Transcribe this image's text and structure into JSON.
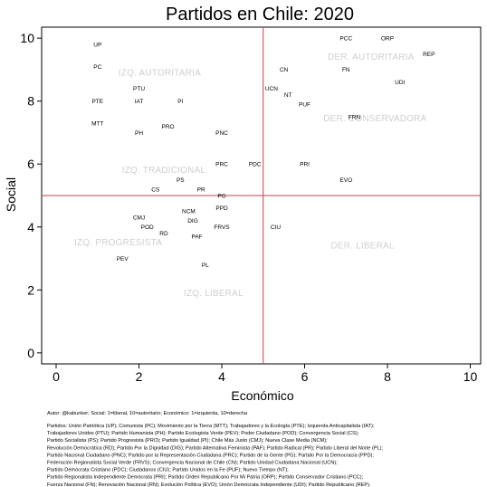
{
  "chart_data": {
    "type": "scatter",
    "title": "Partidos en Chile: 2020",
    "xlabel": "Económico",
    "ylabel": "Social",
    "xlim": [
      -0.35,
      10.25
    ],
    "ylim": [
      -0.35,
      10.35
    ],
    "xticks": [
      "0",
      "2",
      "4",
      "6",
      "8",
      "10"
    ],
    "yticks": [
      "0",
      "2",
      "4",
      "6",
      "8",
      "10"
    ],
    "reference_lines": {
      "x": 5,
      "y": 5,
      "color": "#c0404a"
    },
    "points": [
      {
        "label": "UP",
        "x": 1,
        "y": 9.8
      },
      {
        "label": "PC",
        "x": 1,
        "y": 9.1
      },
      {
        "label": "PTU",
        "x": 2,
        "y": 8.4
      },
      {
        "label": "PTE",
        "x": 1,
        "y": 8
      },
      {
        "label": "IAT",
        "x": 2,
        "y": 8
      },
      {
        "label": "PI",
        "x": 3,
        "y": 8
      },
      {
        "label": "MTT",
        "x": 1,
        "y": 7.3
      },
      {
        "label": "PRO",
        "x": 2.7,
        "y": 7.2
      },
      {
        "label": "PH",
        "x": 2,
        "y": 7
      },
      {
        "label": "PNC",
        "x": 4,
        "y": 7
      },
      {
        "label": "PRC",
        "x": 4,
        "y": 6
      },
      {
        "label": "PDC",
        "x": 4.8,
        "y": 6
      },
      {
        "label": "PRI",
        "x": 6,
        "y": 6
      },
      {
        "label": "PS",
        "x": 3,
        "y": 5.5
      },
      {
        "label": "EVO",
        "x": 7,
        "y": 5.5
      },
      {
        "label": "CS",
        "x": 2.4,
        "y": 5.2
      },
      {
        "label": "PR",
        "x": 3.5,
        "y": 5.2
      },
      {
        "label": "PG",
        "x": 4,
        "y": 5
      },
      {
        "label": "PPD",
        "x": 4,
        "y": 4.6
      },
      {
        "label": "NCM",
        "x": 3.2,
        "y": 4.5
      },
      {
        "label": "CMJ",
        "x": 2,
        "y": 4.3
      },
      {
        "label": "DIG",
        "x": 3.3,
        "y": 4.2
      },
      {
        "label": "POD",
        "x": 2.2,
        "y": 4
      },
      {
        "label": "FRVS",
        "x": 4,
        "y": 4
      },
      {
        "label": "CIU",
        "x": 5.3,
        "y": 4
      },
      {
        "label": "RD",
        "x": 2.6,
        "y": 3.8
      },
      {
        "label": "PAF",
        "x": 3.4,
        "y": 3.7
      },
      {
        "label": "PEV",
        "x": 1.6,
        "y": 3
      },
      {
        "label": "PL",
        "x": 3.6,
        "y": 2.8
      },
      {
        "label": "PCC",
        "x": 7,
        "y": 10
      },
      {
        "label": "ORP",
        "x": 8,
        "y": 10
      },
      {
        "label": "REP",
        "x": 9,
        "y": 9.5
      },
      {
        "label": "CN",
        "x": 5.5,
        "y": 9
      },
      {
        "label": "FN",
        "x": 7,
        "y": 9
      },
      {
        "label": "UDI",
        "x": 8.3,
        "y": 8.6
      },
      {
        "label": "UCN",
        "x": 5.2,
        "y": 8.4
      },
      {
        "label": "NT",
        "x": 5.6,
        "y": 8.2
      },
      {
        "label": "PUF",
        "x": 6,
        "y": 7.9
      },
      {
        "label": "FRN",
        "x": 7.2,
        "y": 7.5
      }
    ],
    "regions": [
      {
        "label": "IZQ. AUTORITARIA",
        "x": 2.5,
        "y": 8.9
      },
      {
        "label": "DER. AUTORITARIA",
        "x": 7.6,
        "y": 9.4
      },
      {
        "label": "DER. CONSERVADORA",
        "x": 7.7,
        "y": 7.45
      },
      {
        "label": "IZQ. TRADICIONAL",
        "x": 2.6,
        "y": 5.8
      },
      {
        "label": "IZQ. PROGRESISTA",
        "x": 1.5,
        "y": 3.5
      },
      {
        "label": "DER. LIBERAL",
        "x": 7.4,
        "y": 3.4
      },
      {
        "label": "IZQ. LIBERAL",
        "x": 3.8,
        "y": 1.9
      }
    ]
  },
  "footer": {
    "author": "Autor: @kabunker; Social: 1=liberal, 10=autoritario; Económico: 1=izquierda, 10=derecha",
    "legend_lines": [
      "Partidos: Unión Patriótica (UP); Comunista (PC); Movimiento por la Tierra (MTT); Trabajadores y la Ecología (PTE); Izquierda Anticapitalista (IAT);",
      "Trabajadores Unidos (PTU); Partido Humanista (PH); Partido Ecologista Verde (PEV); Poder Ciudadano (POD); Convergencia Social (CS);",
      "Partido Socialista (PS); Partido Progresista (PRO); Partido Igualdad (PI); Chile Más Justo (CMJ); Nueva Clase Media (NCM);",
      "Revolución Democrática (RD); Partido Por la Dignidad (DIG); Partido Alternativa Feminista (PAF); Partido Radical (PR); Partido Liberal del Norte (PL);",
      "Partido Nacional Ciudadano (PNC); Partido por la Representación Ciudadana (PRC); Partido de la Gente (PG); Partido Por la Democracia (PPD);",
      "Federación Regionalista Social Verde (FRVS); Convergencia Nacional de Chile (CN); Partido Unidad Ciudadana Nacional (UCN);",
      "Partido Demócrata Cristiano (PDC); Ciudadanos (CIU); Partido Unidos en la Fe (PUF); Nuevo Tiempo (NT);",
      "Partido Regionalista Independiente Demócrata (PRI); Partido Orden Republicano Por Mi Patria (ORP); Partido Conservador Cristiano (PCC);",
      "Fuerza Nacional (FN); Renovación Nacional (RN); Evolución Política (EVO); Unión Demócrata Independiente (UDI); Partido Republicano (REP)."
    ]
  }
}
